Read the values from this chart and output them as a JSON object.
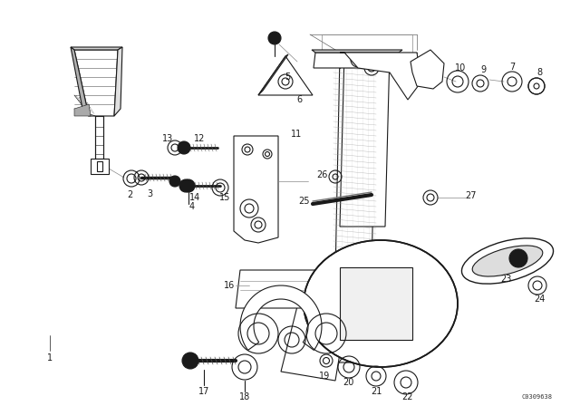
{
  "background_color": "#ffffff",
  "line_color": "#1a1a1a",
  "fig_width": 6.4,
  "fig_height": 4.48,
  "dpi": 100,
  "watermark": "C0309638",
  "border_gray": "#888888"
}
